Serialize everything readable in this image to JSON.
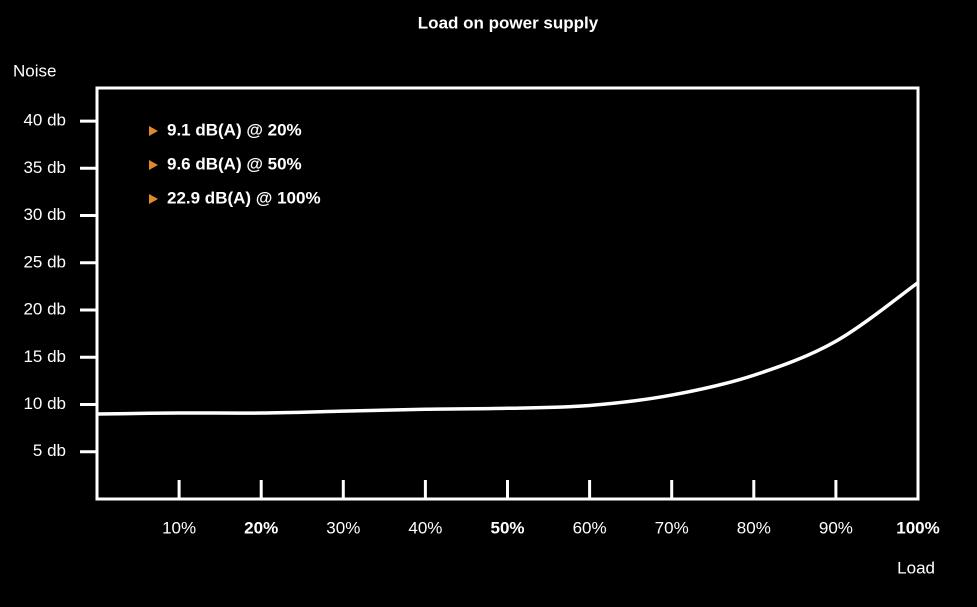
{
  "chart_data": {
    "type": "line",
    "title": "Load on power supply",
    "y_label": "Noise",
    "x_label": "Load",
    "x": [
      0,
      10,
      20,
      30,
      40,
      50,
      60,
      70,
      80,
      90,
      100
    ],
    "series": [
      {
        "name": "Noise",
        "color": "#ffffff",
        "values": [
          9.0,
          9.1,
          9.1,
          9.3,
          9.5,
          9.6,
          9.9,
          11.0,
          13.1,
          16.7,
          22.9
        ]
      }
    ],
    "xlim": [
      0,
      100
    ],
    "ylim": [
      0,
      43.5
    ],
    "xticks": [
      {
        "value": 10,
        "label": "10%"
      },
      {
        "value": 20,
        "label": "20%"
      },
      {
        "value": 30,
        "label": "30%"
      },
      {
        "value": 40,
        "label": "40%"
      },
      {
        "value": 50,
        "label": "50%"
      },
      {
        "value": 60,
        "label": "60%"
      },
      {
        "value": 70,
        "label": "70%"
      },
      {
        "value": 80,
        "label": "80%"
      },
      {
        "value": 90,
        "label": "90%"
      },
      {
        "value": 100,
        "label": "100%"
      }
    ],
    "emphasized_xticks": [
      20,
      50,
      100
    ],
    "yticks": [
      {
        "value": 5,
        "label": "5 db"
      },
      {
        "value": 10,
        "label": "10 db"
      },
      {
        "value": 15,
        "label": "15 db"
      },
      {
        "value": 20,
        "label": "20 db"
      },
      {
        "value": 25,
        "label": "25 db"
      },
      {
        "value": 30,
        "label": "30 db"
      },
      {
        "value": 35,
        "label": "35 db"
      },
      {
        "value": 40,
        "label": "40 db"
      }
    ],
    "annotations": [
      "9.1 dB(A) @ 20%",
      "9.6 dB(A) @ 50%",
      "22.9 dB(A) @ 100%"
    ],
    "annotation_marker_color": "#e0892a"
  }
}
